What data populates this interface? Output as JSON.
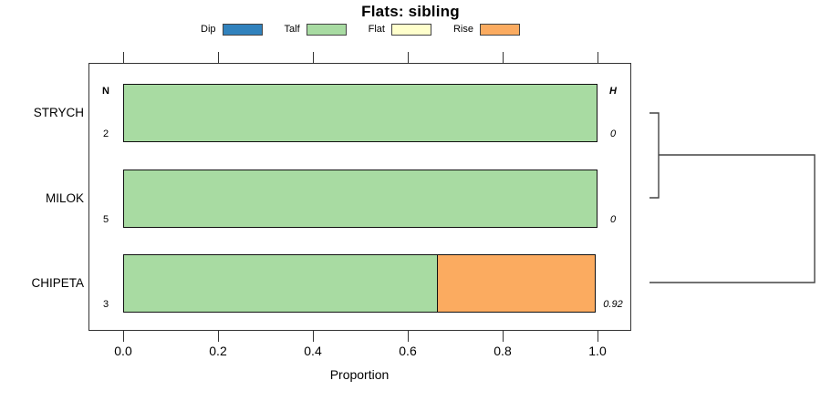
{
  "title": "Flats: sibling",
  "colors": {
    "dip": "#3182bd",
    "talf": "#a8dba2",
    "flat": "#ffffcc",
    "rise": "#fbab60",
    "bar_border": "#111111",
    "dendrogram": "#444444"
  },
  "chart_data": {
    "type": "bar",
    "stacked": true,
    "orientation": "horizontal",
    "title": "Flats: sibling",
    "xlabel": "Proportion",
    "xlim": [
      0,
      1
    ],
    "x_tick_values": [
      0,
      0.2,
      0.4,
      0.6,
      0.8,
      1.0
    ],
    "x_tick_labels": [
      "0.0",
      "0.2",
      "0.4",
      "0.6",
      "0.8",
      "1.0"
    ],
    "legend": [
      {
        "label": "Dip",
        "color": "#3182bd"
      },
      {
        "label": "Talf",
        "color": "#a8dba2"
      },
      {
        "label": "Flat",
        "color": "#ffffcc"
      },
      {
        "label": "Rise",
        "color": "#fbab60"
      }
    ],
    "legend_position": "top",
    "grid": false,
    "left_column_header": "N",
    "right_column_header": "H",
    "categories": [
      "STRYCH",
      "MILOK",
      "CHIPETA"
    ],
    "rows": [
      {
        "category": "STRYCH",
        "n": "2",
        "h": "0",
        "segments": [
          {
            "label": "Talf",
            "value": 1.0,
            "color": "#a8dba2"
          }
        ]
      },
      {
        "category": "MILOK",
        "n": "5",
        "h": "0",
        "segments": [
          {
            "label": "Talf",
            "value": 1.0,
            "color": "#a8dba2"
          }
        ]
      },
      {
        "category": "CHIPETA",
        "n": "3",
        "h": "0.92",
        "segments": [
          {
            "label": "Talf",
            "value": 0.665,
            "color": "#a8dba2"
          },
          {
            "label": "Rise",
            "value": 0.335,
            "color": "#fbab60"
          }
        ]
      }
    ]
  }
}
